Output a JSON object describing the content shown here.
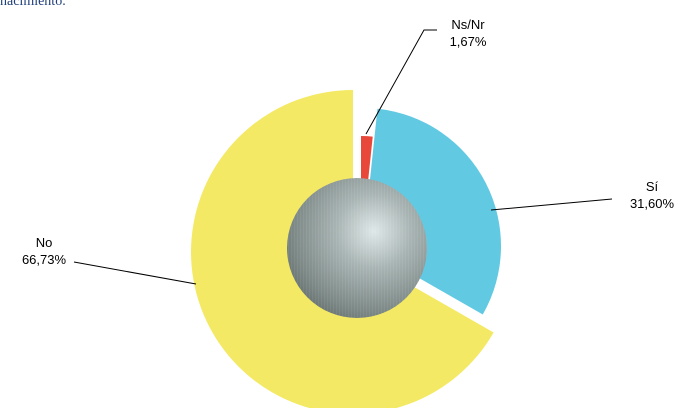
{
  "header": {
    "text": "nacimiento."
  },
  "chart_data": {
    "type": "pie",
    "title": "",
    "slices": [
      {
        "name": "Ns/Nr",
        "value": 1.67,
        "label": "1,67%",
        "color": "#e8483a"
      },
      {
        "name": "Sí",
        "value": 31.6,
        "label": "31,60%",
        "color": "#62c9e3"
      },
      {
        "name": "No",
        "value": 66.73,
        "label": "66,73%",
        "color": "#f4e964"
      }
    ],
    "center_sphere_color": "#8f9b99",
    "legend": "none"
  }
}
